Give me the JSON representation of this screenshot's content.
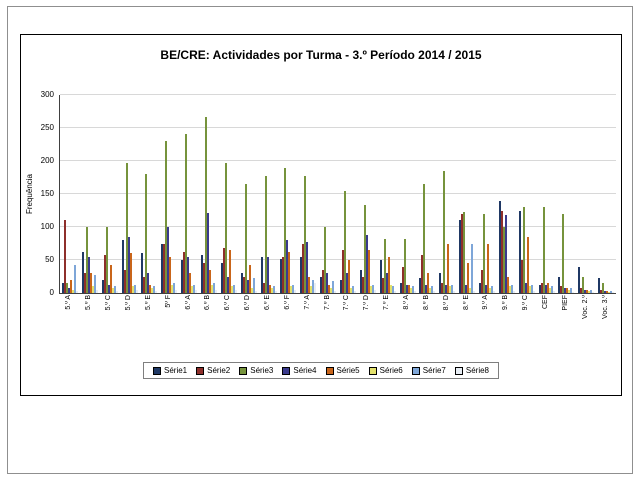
{
  "chart_data": {
    "type": "bar",
    "title": "BE/CRE: Actividades por Turma - 3.º Período 2014 / 2015",
    "ylabel": "Frequência",
    "xlabel": "",
    "ylim": [
      0,
      300
    ],
    "yticks": [
      0,
      50,
      100,
      150,
      200,
      250,
      300
    ],
    "grid": true,
    "legend_position": "bottom",
    "categories": [
      "5.º A",
      "5.º B",
      "5.º C",
      "5.º D",
      "5.º E",
      "5º F",
      "6.º A",
      "6.º B",
      "6.º C",
      "6.º D",
      "6.º E",
      "6.º F",
      "7.º A",
      "7.º B",
      "7.º C",
      "7.º D",
      "7.º E",
      "8.º A",
      "8.º B",
      "8.º D",
      "8.º E",
      "9.º A",
      "9.º B",
      "9.º C",
      "CEF",
      "PIEF",
      "Voc. 2.º",
      "Voc. 3.º"
    ],
    "series": [
      {
        "name": "Série1",
        "color": "#1F3864",
        "values": [
          15,
          62,
          20,
          80,
          60,
          75,
          50,
          58,
          45,
          30,
          55,
          52,
          55,
          25,
          20,
          35,
          50,
          15,
          22,
          30,
          110,
          15,
          140,
          125,
          12,
          25,
          40,
          22
        ]
      },
      {
        "name": "Série2",
        "color": "#8E2F2B",
        "values": [
          110,
          30,
          58,
          35,
          25,
          75,
          62,
          45,
          68,
          25,
          15,
          55,
          75,
          35,
          65,
          25,
          22,
          40,
          57,
          15,
          120,
          35,
          125,
          50,
          15,
          10,
          8,
          5
        ]
      },
      {
        "name": "Série3",
        "color": "#76933C",
        "values": [
          15,
          100,
          100,
          197,
          181,
          231,
          241,
          266,
          197,
          165,
          178,
          190,
          178,
          100,
          155,
          133,
          82,
          82,
          165,
          185,
          122,
          120,
          100,
          130,
          130,
          120,
          25,
          15
        ]
      },
      {
        "name": "Série4",
        "color": "#3A3A8C",
        "values": [
          8,
          55,
          12,
          85,
          30,
          100,
          55,
          121,
          25,
          20,
          55,
          80,
          78,
          30,
          30,
          88,
          30,
          12,
          12,
          12,
          12,
          12,
          118,
          15,
          12,
          8,
          5,
          3
        ]
      },
      {
        "name": "Série5",
        "color": "#C9651A",
        "values": [
          20,
          30,
          42,
          60,
          12,
          55,
          30,
          35,
          65,
          42,
          12,
          62,
          25,
          12,
          50,
          65,
          55,
          12,
          30,
          75,
          45,
          75,
          25,
          85,
          15,
          8,
          5,
          3
        ]
      },
      {
        "name": "Série6",
        "color": "#E3E16B",
        "values": [
          5,
          10,
          8,
          10,
          8,
          12,
          10,
          12,
          10,
          8,
          8,
          10,
          10,
          8,
          8,
          10,
          12,
          8,
          8,
          10,
          8,
          8,
          10,
          10,
          8,
          5,
          3,
          2
        ]
      },
      {
        "name": "Série7",
        "color": "#7EA6D8",
        "values": [
          42,
          28,
          10,
          12,
          10,
          15,
          12,
          15,
          12,
          22,
          10,
          12,
          20,
          18,
          10,
          12,
          10,
          10,
          10,
          12,
          75,
          10,
          12,
          12,
          10,
          8,
          5,
          3
        ]
      },
      {
        "name": "Série8",
        "color": "#E7EDF4",
        "values": [
          3,
          5,
          3,
          5,
          3,
          5,
          4,
          5,
          4,
          3,
          3,
          4,
          15,
          3,
          3,
          4,
          3,
          3,
          3,
          3,
          3,
          3,
          3,
          3,
          3,
          2,
          2,
          1
        ]
      }
    ]
  }
}
